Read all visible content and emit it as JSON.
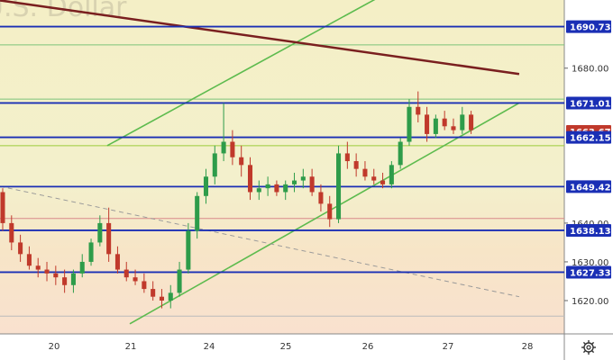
{
  "chart_data": {
    "type": "candlestick",
    "title": "U.S. Dollar",
    "symbol_watermark": "U.S. Dollar",
    "x_labels": [
      "20",
      "21",
      "24",
      "25",
      "26",
      "27",
      "28"
    ],
    "y_ticks": [
      1620.0,
      1630.0,
      1640.0,
      1680.0
    ],
    "y_tick_labels": [
      "1620.00",
      "1630.00",
      "1640.00",
      "1680.00"
    ],
    "ylim": [
      1611.4,
      1697.6
    ],
    "levels": [
      {
        "name": "resistance-1690",
        "value": 1690.73,
        "label": "1690.73",
        "color": "#1a2fb5"
      },
      {
        "name": "resistance-1671",
        "value": 1671.01,
        "label": "1671.01",
        "color": "#1a2fb5"
      },
      {
        "name": "current-price",
        "value": 1663.67,
        "label": "1663.67",
        "color": "#c0392b"
      },
      {
        "name": "support-1662",
        "value": 1662.15,
        "label": "1662.15",
        "color": "#1a2fb5"
      },
      {
        "name": "support-1649",
        "value": 1649.42,
        "label": "1649.42",
        "color": "#1a2fb5"
      },
      {
        "name": "support-1638",
        "value": 1638.13,
        "label": "1638.13",
        "color": "#1a2fb5"
      },
      {
        "name": "support-1627",
        "value": 1627.33,
        "label": "1627.33",
        "color": "#1a2fb5"
      }
    ],
    "thin_lines": [
      {
        "value": 1686.0,
        "color": "#7cc47a"
      },
      {
        "value": 1672.0,
        "color": "#7cc47a"
      },
      {
        "value": 1660.0,
        "color": "#9ccc3a"
      },
      {
        "value": 1641.2,
        "color": "#d98a8a"
      },
      {
        "value": 1616.0,
        "color": "#bbbbbb"
      }
    ],
    "trendlines": [
      {
        "name": "channel-upper",
        "color": "#5dbb4e",
        "from": [
          0.19,
          1660.0
        ],
        "to": [
          0.68,
          1699.0
        ]
      },
      {
        "name": "channel-lower",
        "color": "#5dbb4e",
        "from": [
          0.23,
          1614.0
        ],
        "to": [
          0.92,
          1671.0
        ]
      },
      {
        "name": "descending-resistance",
        "color": "#7a1f1f",
        "from": [
          0.0,
          1697.5
        ],
        "to": [
          0.92,
          1678.5
        ]
      },
      {
        "name": "dashed-support",
        "color": "#999999",
        "dashed": true,
        "from": [
          0.0,
          1649.5
        ],
        "to": [
          0.92,
          1621.0
        ]
      }
    ],
    "candles": [
      [
        1648,
        1649,
        1638,
        1640
      ],
      [
        1640,
        1642,
        1633,
        1635
      ],
      [
        1635,
        1637,
        1630,
        1632
      ],
      [
        1632,
        1634,
        1628,
        1629
      ],
      [
        1629,
        1631,
        1626,
        1628
      ],
      [
        1628,
        1630,
        1625,
        1627
      ],
      [
        1627,
        1629,
        1624,
        1626
      ],
      [
        1626,
        1628,
        1622,
        1624
      ],
      [
        1624,
        1628,
        1622,
        1627
      ],
      [
        1627,
        1632,
        1626,
        1630
      ],
      [
        1630,
        1636,
        1629,
        1635
      ],
      [
        1635,
        1642,
        1634,
        1640
      ],
      [
        1640,
        1644,
        1630,
        1632
      ],
      [
        1632,
        1634,
        1627,
        1628
      ],
      [
        1628,
        1630,
        1625,
        1626
      ],
      [
        1626,
        1628,
        1624,
        1625
      ],
      [
        1625,
        1627,
        1622,
        1623
      ],
      [
        1623,
        1625,
        1620,
        1621
      ],
      [
        1621,
        1623,
        1618,
        1620
      ],
      [
        1620,
        1624,
        1618,
        1622
      ],
      [
        1622,
        1630,
        1621,
        1628
      ],
      [
        1628,
        1640,
        1627,
        1638
      ],
      [
        1638,
        1648,
        1636,
        1647
      ],
      [
        1647,
        1654,
        1645,
        1652
      ],
      [
        1652,
        1660,
        1650,
        1658
      ],
      [
        1658,
        1671,
        1656,
        1661
      ],
      [
        1661,
        1664,
        1655,
        1657
      ],
      [
        1657,
        1660,
        1652,
        1655
      ],
      [
        1655,
        1657,
        1646,
        1648
      ],
      [
        1648,
        1651,
        1646,
        1649
      ],
      [
        1649,
        1652,
        1647,
        1650
      ],
      [
        1650,
        1651,
        1647,
        1648
      ],
      [
        1648,
        1651,
        1646,
        1650
      ],
      [
        1650,
        1653,
        1648,
        1651
      ],
      [
        1651,
        1654,
        1649,
        1652
      ],
      [
        1652,
        1654,
        1647,
        1648
      ],
      [
        1648,
        1650,
        1643,
        1645
      ],
      [
        1645,
        1647,
        1639,
        1641
      ],
      [
        1641,
        1660,
        1640,
        1658
      ],
      [
        1658,
        1661,
        1654,
        1656
      ],
      [
        1656,
        1658,
        1652,
        1654
      ],
      [
        1654,
        1656,
        1651,
        1652
      ],
      [
        1652,
        1654,
        1650,
        1651
      ],
      [
        1651,
        1653,
        1649,
        1650
      ],
      [
        1650,
        1656,
        1649,
        1655
      ],
      [
        1655,
        1662,
        1654,
        1661
      ],
      [
        1661,
        1672,
        1660,
        1670
      ],
      [
        1670,
        1674,
        1666,
        1668
      ],
      [
        1668,
        1670,
        1661,
        1663
      ],
      [
        1663,
        1668,
        1662,
        1667
      ],
      [
        1667,
        1669,
        1664,
        1665
      ],
      [
        1665,
        1667,
        1663,
        1664
      ],
      [
        1664,
        1670,
        1663,
        1668
      ],
      [
        1668,
        1669,
        1663,
        1664
      ]
    ]
  }
}
